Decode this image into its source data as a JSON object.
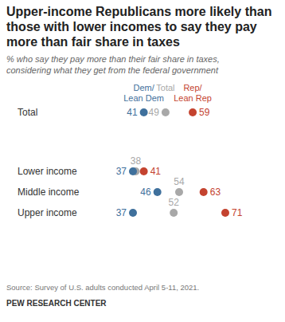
{
  "chart_data": {
    "type": "dot",
    "title": "Upper-income Republicans more likely than those with lower incomes to say they pay more than fair share in taxes",
    "subtitle": "% who say they pay more than their fair share in taxes, considering what they get from the federal government",
    "source": "Source: Survey of U.S. adults conducted April 5-11, 2021.",
    "credit": "PEW RESEARCH CENTER",
    "categories": [
      "Total",
      "Lower income",
      "Middle income",
      "Upper income"
    ],
    "series": [
      {
        "name": "Dem/Lean Dem",
        "color": "#3f709c",
        "values": [
          41,
          37,
          46,
          37
        ]
      },
      {
        "name": "Total",
        "color": "#a8a8a8",
        "values": [
          49,
          38,
          54,
          52
        ]
      },
      {
        "name": "Rep/Lean Rep",
        "color": "#c4432f",
        "values": [
          59,
          41,
          63,
          71
        ]
      }
    ],
    "data_labels": true,
    "tick_labels": false
  }
}
